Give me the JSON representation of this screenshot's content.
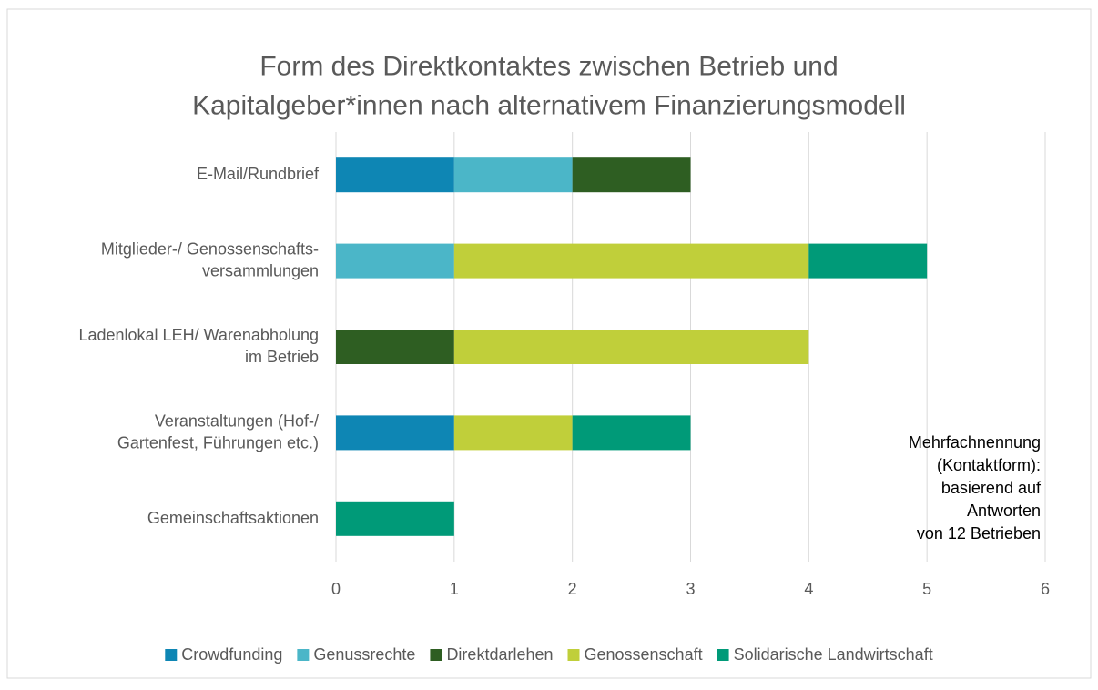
{
  "chart_data": {
    "type": "bar",
    "orientation": "horizontal",
    "stacked": true,
    "title": "Form des Direktkontaktes zwischen Betrieb und\nKapitalgeber*innen nach alternativem Finanzierungsmodell",
    "categories": [
      "E-Mail/Rundbrief",
      "Mitglieder-/ Genossenschafts-\nversammlungen",
      "Ladenlokal LEH/ Warenabholung\nim Betrieb",
      "Veranstaltungen (Hof-/\nGartenfest, Führungen etc.)",
      "Gemeinschaftsaktionen"
    ],
    "series": [
      {
        "name": "Crowdfunding",
        "color": "#0e86b4",
        "values": [
          1,
          0,
          0,
          1,
          0
        ]
      },
      {
        "name": "Genussrechte",
        "color": "#4bb6c8",
        "values": [
          1,
          1,
          0,
          0,
          0
        ]
      },
      {
        "name": "Direktdarlehen",
        "color": "#2e5e22",
        "values": [
          1,
          0,
          1,
          0,
          0
        ]
      },
      {
        "name": "Genossenschaft",
        "color": "#c0cf3a",
        "values": [
          0,
          3,
          3,
          1,
          0
        ]
      },
      {
        "name": "Solidarische Landwirtschaft",
        "color": "#009a78",
        "values": [
          0,
          1,
          0,
          1,
          1
        ]
      }
    ],
    "xlim": [
      0,
      6
    ],
    "xticks": [
      0,
      1,
      2,
      3,
      4,
      5,
      6
    ],
    "grid": true,
    "legend": "bottom",
    "annotation": "Mehrfachnennung\n(Kontaktform):\nbasierend auf\nAntworten\nvon 12 Betrieben"
  }
}
